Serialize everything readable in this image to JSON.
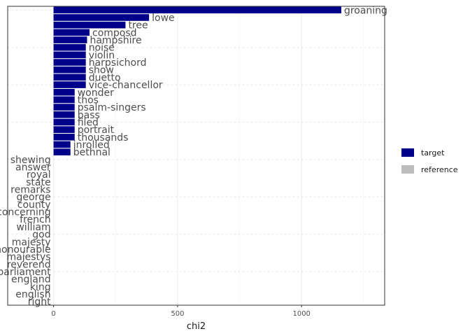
{
  "chart_data": {
    "type": "bar",
    "orientation": "horizontal",
    "xlabel": "chi2",
    "ylabel": "",
    "xlim": [
      -185,
      1335
    ],
    "x_ticks": [
      0,
      500,
      1000
    ],
    "grid": true,
    "legend_position": "right",
    "categories": [
      "groaning",
      "lowe",
      "tree",
      "composd",
      "hampshire",
      "noise",
      "violin",
      "harpsichord",
      "show",
      "duetto",
      "vice-chancellor",
      "wonder",
      "thos",
      "psalm-singers",
      "bass",
      "filed",
      "portrait",
      "thousands",
      "inrolled",
      "bethnal",
      "shewing",
      "answer",
      "royal",
      "state",
      "remarks",
      "george",
      "county",
      "concerning",
      "french",
      "william",
      "god",
      "majesty",
      "honourable",
      "majestys",
      "reverend",
      "parliament",
      "england",
      "king",
      "english",
      "right"
    ],
    "series": [
      {
        "name": "target",
        "color": "#00008B",
        "values": [
          1160,
          385,
          290,
          145,
          135,
          130,
          130,
          130,
          130,
          130,
          130,
          85,
          85,
          85,
          85,
          85,
          85,
          85,
          68,
          68,
          0,
          0,
          0,
          0,
          0,
          0,
          0,
          0,
          0,
          0,
          0,
          0,
          0,
          0,
          0,
          0,
          0,
          0,
          0,
          0
        ]
      },
      {
        "name": "reference",
        "color": "#BEBEBE",
        "values": [
          0,
          0,
          0,
          0,
          0,
          0,
          0,
          0,
          0,
          0,
          0,
          0,
          0,
          0,
          0,
          0,
          0,
          0,
          0,
          0,
          0,
          0,
          0,
          0,
          0,
          0,
          0,
          0,
          0,
          0,
          0,
          0,
          0,
          0,
          0,
          0,
          0,
          0,
          0,
          0
        ]
      }
    ]
  }
}
